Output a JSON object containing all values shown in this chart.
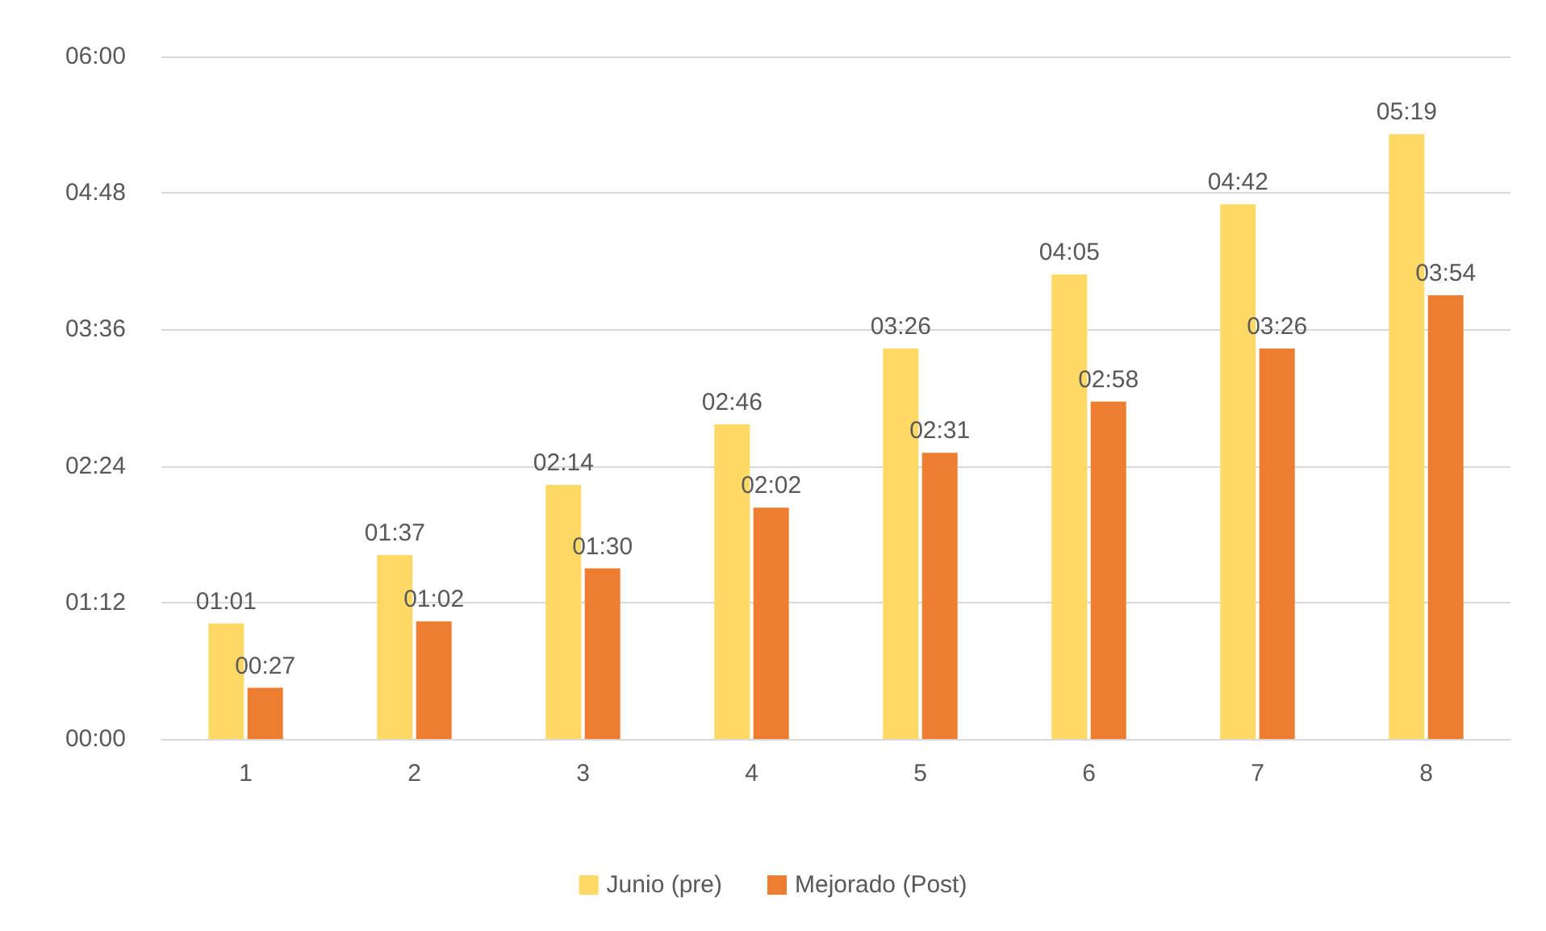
{
  "chart_data": {
    "type": "bar",
    "categories": [
      "1",
      "2",
      "3",
      "4",
      "5",
      "6",
      "7",
      "8"
    ],
    "series": [
      {
        "name": "Junio (pre)",
        "color": "#ffd966",
        "values": [
          61,
          97,
          134,
          166,
          206,
          245,
          282,
          319
        ],
        "value_labels": [
          "01:01",
          "01:37",
          "02:14",
          "02:46",
          "03:26",
          "04:05",
          "04:42",
          "05:19"
        ]
      },
      {
        "name": "Mejorado (Post)",
        "color": "#ed7d31",
        "values": [
          27,
          62,
          90,
          122,
          151,
          178,
          206,
          234
        ],
        "value_labels": [
          "00:27",
          "01:02",
          "01:30",
          "02:02",
          "02:31",
          "02:58",
          "03:26",
          "03:54"
        ]
      }
    ],
    "ylim": [
      0,
      360
    ],
    "yticks": [
      {
        "value": 0,
        "label": "00:00"
      },
      {
        "value": 72,
        "label": "01:12"
      },
      {
        "value": 144,
        "label": "02:24"
      },
      {
        "value": 216,
        "label": "03:36"
      },
      {
        "value": 288,
        "label": "04:48"
      },
      {
        "value": 360,
        "label": "06:00"
      }
    ],
    "grid": "y",
    "legend": "bottom"
  }
}
